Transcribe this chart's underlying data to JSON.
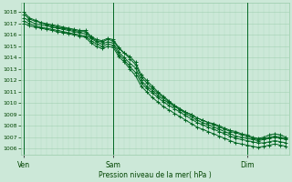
{
  "background_color": "#cce8d8",
  "plot_bg_color": "#cce8d8",
  "grid_color": "#99ccaa",
  "line_color": "#006622",
  "marker_color": "#006622",
  "ylim": [
    1005.5,
    1018.8
  ],
  "yticks": [
    1006,
    1007,
    1008,
    1009,
    1010,
    1011,
    1012,
    1013,
    1014,
    1015,
    1016,
    1017,
    1018
  ],
  "xlabel": "Pression niveau de la mer( hPa )",
  "xtick_labels": [
    "Ven",
    "Sam",
    "Dim"
  ],
  "title_color": "#004400",
  "series": [
    [
      1018.0,
      1017.5,
      1017.3,
      1017.1,
      1016.9,
      1016.8,
      1016.7,
      1016.6,
      1016.5,
      1016.4,
      1016.3,
      1016.3,
      1015.8,
      1015.5,
      1015.4,
      1015.6,
      1015.5,
      1014.8,
      1014.4,
      1014.1,
      1013.6,
      1012.5,
      1012.0,
      1011.5,
      1011.0,
      1010.6,
      1010.2,
      1009.8,
      1009.5,
      1009.2,
      1009.0,
      1008.7,
      1008.5,
      1008.3,
      1008.2,
      1008.0,
      1007.8,
      1007.6,
      1007.5,
      1007.3,
      1007.2,
      1007.0,
      1006.9,
      1007.0,
      1007.2,
      1007.3,
      1007.2,
      1007.0
    ],
    [
      1017.5,
      1017.2,
      1017.0,
      1016.9,
      1016.8,
      1016.7,
      1016.6,
      1016.5,
      1016.4,
      1016.3,
      1016.2,
      1016.1,
      1015.7,
      1015.4,
      1015.2,
      1015.4,
      1015.3,
      1014.5,
      1014.0,
      1013.5,
      1013.1,
      1012.0,
      1011.5,
      1011.1,
      1010.7,
      1010.3,
      1010.0,
      1009.7,
      1009.4,
      1009.1,
      1008.8,
      1008.5,
      1008.3,
      1008.1,
      1007.9,
      1007.7,
      1007.5,
      1007.3,
      1007.1,
      1007.0,
      1006.9,
      1006.8,
      1006.7,
      1006.8,
      1006.9,
      1007.0,
      1006.9,
      1006.8
    ],
    [
      1017.2,
      1017.0,
      1016.8,
      1016.7,
      1016.6,
      1016.5,
      1016.4,
      1016.3,
      1016.2,
      1016.1,
      1016.0,
      1015.9,
      1015.5,
      1015.2,
      1015.0,
      1015.2,
      1015.1,
      1014.3,
      1013.8,
      1013.2,
      1012.7,
      1011.8,
      1011.3,
      1010.9,
      1010.5,
      1010.1,
      1009.8,
      1009.5,
      1009.2,
      1008.9,
      1008.6,
      1008.3,
      1008.1,
      1007.9,
      1007.7,
      1007.5,
      1007.3,
      1007.1,
      1006.9,
      1006.8,
      1006.7,
      1006.6,
      1006.5,
      1006.5,
      1006.6,
      1006.7,
      1006.6,
      1006.5
    ],
    [
      1017.0,
      1016.8,
      1016.7,
      1016.6,
      1016.5,
      1016.4,
      1016.3,
      1016.2,
      1016.1,
      1016.0,
      1015.9,
      1015.8,
      1015.3,
      1015.0,
      1014.8,
      1015.0,
      1014.9,
      1014.1,
      1013.6,
      1013.0,
      1012.4,
      1011.5,
      1011.0,
      1010.5,
      1010.1,
      1009.7,
      1009.4,
      1009.1,
      1008.8,
      1008.5,
      1008.2,
      1007.9,
      1007.7,
      1007.5,
      1007.3,
      1007.1,
      1006.9,
      1006.7,
      1006.5,
      1006.4,
      1006.3,
      1006.2,
      1006.1,
      1006.2,
      1006.3,
      1006.4,
      1006.3,
      1006.2
    ],
    [
      1017.8,
      1017.4,
      1017.2,
      1017.1,
      1017.0,
      1016.9,
      1016.8,
      1016.7,
      1016.6,
      1016.5,
      1016.4,
      1016.4,
      1015.9,
      1015.6,
      1015.5,
      1015.7,
      1015.6,
      1014.9,
      1014.4,
      1013.9,
      1013.4,
      1012.3,
      1011.8,
      1011.3,
      1010.9,
      1010.5,
      1010.1,
      1009.8,
      1009.5,
      1009.2,
      1009.0,
      1008.7,
      1008.5,
      1008.3,
      1008.1,
      1007.9,
      1007.7,
      1007.5,
      1007.4,
      1007.2,
      1007.1,
      1006.9,
      1006.8,
      1006.9,
      1007.0,
      1007.1,
      1007.0,
      1006.9
    ]
  ],
  "n_total": 48,
  "sam_idx": 16,
  "dim_idx": 40,
  "figsize": [
    3.2,
    2.0
  ],
  "dpi": 100
}
